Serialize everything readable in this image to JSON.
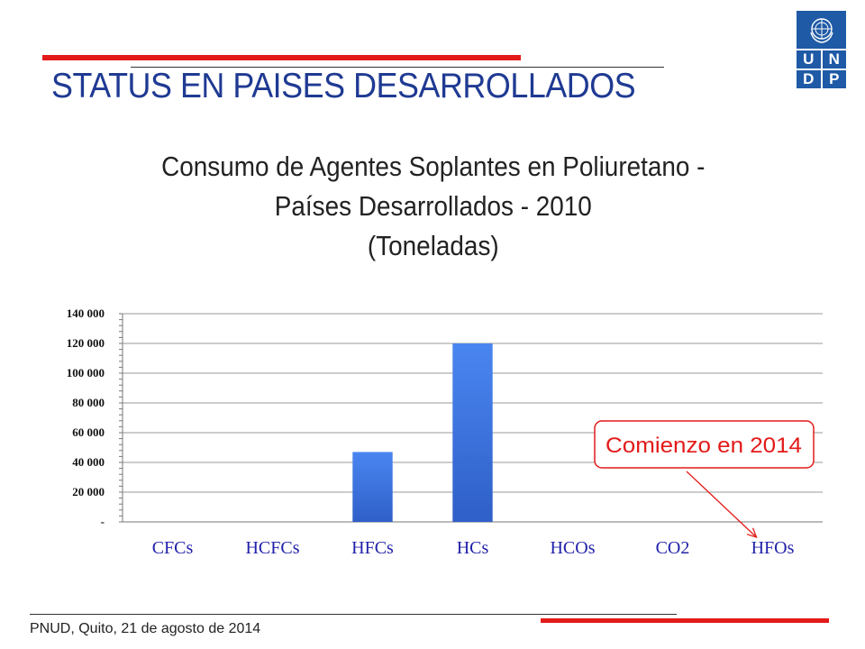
{
  "slide_title": "STATUS EN PAISES DESARROLLADOS",
  "footer": "PNUD, Quito, 21 de agosto de 2014",
  "logo": {
    "letters": [
      "U",
      "N",
      "D",
      "P"
    ],
    "icon": "un-emblem-icon"
  },
  "annotation": {
    "text": "Comienzo en 2014",
    "points_to": "HFOs"
  },
  "chart_data": {
    "type": "bar",
    "title_lines": [
      "Consumo de Agentes Soplantes en Poliuretano -",
      "Países Desarrollados - 2010",
      "(Toneladas)"
    ],
    "categories": [
      "CFCs",
      "HCFCs",
      "HFCs",
      "HCs",
      "HCOs",
      "CO2",
      "HFOs"
    ],
    "values": [
      0,
      0,
      47000,
      120000,
      0,
      0,
      0
    ],
    "ylim": [
      0,
      140000
    ],
    "yticks": [
      0,
      20000,
      40000,
      60000,
      80000,
      100000,
      120000,
      140000
    ],
    "ytick_labels": [
      "-",
      "20 000",
      "40 000",
      "60 000",
      "80 000",
      "100 000",
      "120 000",
      "140 000"
    ],
    "grid": true,
    "colors": {
      "bar": "#3a6fd8",
      "category_labels": "#2222aa",
      "annotation": "#e31a1a"
    }
  }
}
